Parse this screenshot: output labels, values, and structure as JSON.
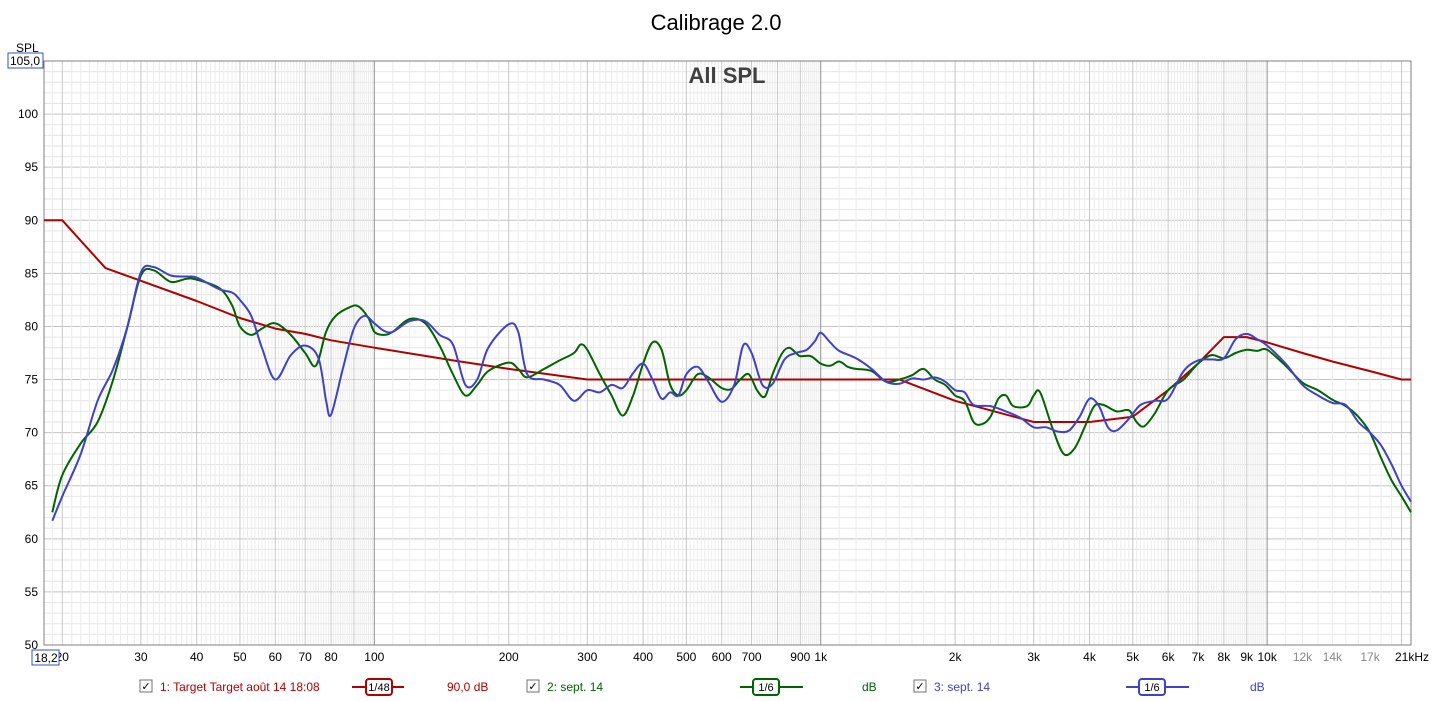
{
  "chart_data": {
    "type": "line",
    "title": "Calibrage 2.0",
    "subtitle": "All SPL",
    "ylabel": "SPL",
    "xunit": "kHz",
    "x_scale": "log",
    "xlim": [
      18.2,
      21000
    ],
    "ylim": [
      50,
      105
    ],
    "xlim_box_label": "18,2",
    "ylim_box_label": "105,0",
    "y_ticks": [
      50,
      55,
      60,
      65,
      70,
      75,
      80,
      85,
      90,
      95,
      100
    ],
    "x_ticks": [
      {
        "v": 20,
        "label": "20"
      },
      {
        "v": 30,
        "label": "30"
      },
      {
        "v": 40,
        "label": "40"
      },
      {
        "v": 50,
        "label": "50"
      },
      {
        "v": 60,
        "label": "60"
      },
      {
        "v": 70,
        "label": "70"
      },
      {
        "v": 80,
        "label": "80"
      },
      {
        "v": 100,
        "label": "100"
      },
      {
        "v": 200,
        "label": "200"
      },
      {
        "v": 300,
        "label": "300"
      },
      {
        "v": 400,
        "label": "400"
      },
      {
        "v": 500,
        "label": "500"
      },
      {
        "v": 600,
        "label": "600"
      },
      {
        "v": 700,
        "label": "700"
      },
      {
        "v": 900,
        "label": "900"
      },
      {
        "v": 1000,
        "label": "1k"
      },
      {
        "v": 2000,
        "label": "2k"
      },
      {
        "v": 3000,
        "label": "3k"
      },
      {
        "v": 4000,
        "label": "4k"
      },
      {
        "v": 5000,
        "label": "5k"
      },
      {
        "v": 6000,
        "label": "6k"
      },
      {
        "v": 7000,
        "label": "7k"
      },
      {
        "v": 8000,
        "label": "8k"
      },
      {
        "v": 9000,
        "label": "9k"
      },
      {
        "v": 10000,
        "label": "10k"
      },
      {
        "v": 12000,
        "label": "12k",
        "light": true
      },
      {
        "v": 14000,
        "label": "14k",
        "light": true
      },
      {
        "v": 17000,
        "label": "17k",
        "light": true
      },
      {
        "v": 21000,
        "label": "21kHz"
      }
    ],
    "grid": true,
    "series": [
      {
        "name": "1: Target Target août 14 18:08",
        "color": "#b00000",
        "points": [
          [
            18.2,
            90
          ],
          [
            20,
            90
          ],
          [
            25,
            85.5
          ],
          [
            30,
            84.3
          ],
          [
            40,
            82.4
          ],
          [
            50,
            80.8
          ],
          [
            60,
            79.8
          ],
          [
            70,
            79.3
          ],
          [
            80,
            78.7
          ],
          [
            100,
            78
          ],
          [
            150,
            76.8
          ],
          [
            200,
            76
          ],
          [
            300,
            75
          ],
          [
            500,
            75
          ],
          [
            700,
            75
          ],
          [
            1000,
            75
          ],
          [
            1500,
            75
          ],
          [
            2000,
            73
          ],
          [
            3000,
            71
          ],
          [
            4000,
            71
          ],
          [
            5000,
            71.5
          ],
          [
            6000,
            74
          ],
          [
            7000,
            76.5
          ],
          [
            8000,
            79
          ],
          [
            9000,
            79
          ],
          [
            10000,
            78.5
          ],
          [
            12000,
            77.5
          ],
          [
            14000,
            76.7
          ],
          [
            17000,
            75.8
          ],
          [
            20000,
            75
          ],
          [
            21000,
            75
          ]
        ]
      },
      {
        "name": "2: sept. 14",
        "color": "#006400",
        "points": [
          [
            19,
            62.5
          ],
          [
            20,
            66
          ],
          [
            22,
            69
          ],
          [
            24,
            71
          ],
          [
            26,
            75
          ],
          [
            28,
            80
          ],
          [
            30,
            84.8
          ],
          [
            32,
            85.3
          ],
          [
            35,
            84.2
          ],
          [
            38,
            84.5
          ],
          [
            40,
            84.4
          ],
          [
            45,
            83.6
          ],
          [
            48,
            82
          ],
          [
            50,
            80
          ],
          [
            53,
            79.2
          ],
          [
            56,
            79.8
          ],
          [
            60,
            80.3
          ],
          [
            65,
            79.2
          ],
          [
            70,
            77.5
          ],
          [
            74,
            76.3
          ],
          [
            78,
            79.5
          ],
          [
            82,
            81
          ],
          [
            88,
            81.8
          ],
          [
            92,
            81.9
          ],
          [
            97,
            80.8
          ],
          [
            100,
            79.5
          ],
          [
            105,
            79.2
          ],
          [
            110,
            79.5
          ],
          [
            120,
            80.7
          ],
          [
            130,
            80.3
          ],
          [
            140,
            78.2
          ],
          [
            150,
            75.5
          ],
          [
            160,
            73.5
          ],
          [
            170,
            74.5
          ],
          [
            180,
            75.8
          ],
          [
            200,
            76.6
          ],
          [
            210,
            76
          ],
          [
            220,
            75.2
          ],
          [
            240,
            76
          ],
          [
            260,
            76.8
          ],
          [
            280,
            77.5
          ],
          [
            290,
            78.3
          ],
          [
            300,
            77.8
          ],
          [
            320,
            75.5
          ],
          [
            340,
            73.5
          ],
          [
            360,
            71.6
          ],
          [
            380,
            73.5
          ],
          [
            400,
            76.5
          ],
          [
            420,
            78.5
          ],
          [
            440,
            77.8
          ],
          [
            460,
            74.5
          ],
          [
            480,
            73.5
          ],
          [
            500,
            74
          ],
          [
            530,
            75.5
          ],
          [
            560,
            75.2
          ],
          [
            600,
            74.2
          ],
          [
            630,
            74.1
          ],
          [
            660,
            75
          ],
          [
            690,
            75.5
          ],
          [
            720,
            74
          ],
          [
            750,
            73.4
          ],
          [
            780,
            75.5
          ],
          [
            820,
            77.5
          ],
          [
            850,
            78
          ],
          [
            880,
            77.5
          ],
          [
            900,
            77.2
          ],
          [
            950,
            77.2
          ],
          [
            1000,
            76.5
          ],
          [
            1050,
            76.3
          ],
          [
            1100,
            76.7
          ],
          [
            1150,
            76.2
          ],
          [
            1200,
            76
          ],
          [
            1300,
            75.8
          ],
          [
            1400,
            74.8
          ],
          [
            1500,
            75
          ],
          [
            1600,
            75.4
          ],
          [
            1700,
            76
          ],
          [
            1800,
            75
          ],
          [
            1900,
            74.5
          ],
          [
            2000,
            73.5
          ],
          [
            2100,
            73
          ],
          [
            2200,
            71
          ],
          [
            2300,
            70.8
          ],
          [
            2400,
            71.5
          ],
          [
            2500,
            73.2
          ],
          [
            2600,
            73.5
          ],
          [
            2700,
            72.5
          ],
          [
            2900,
            72.5
          ],
          [
            3000,
            73.5
          ],
          [
            3100,
            73.8
          ],
          [
            3300,
            70.5
          ],
          [
            3500,
            68
          ],
          [
            3700,
            68.5
          ],
          [
            3900,
            70.5
          ],
          [
            4100,
            72.5
          ],
          [
            4300,
            72.6
          ],
          [
            4600,
            72
          ],
          [
            4900,
            72.1
          ],
          [
            5100,
            71
          ],
          [
            5300,
            70.6
          ],
          [
            5600,
            71.8
          ],
          [
            6000,
            74
          ],
          [
            6500,
            75
          ],
          [
            7000,
            76.5
          ],
          [
            7500,
            77.3
          ],
          [
            8000,
            77
          ],
          [
            8500,
            77.5
          ],
          [
            9000,
            77.8
          ],
          [
            9500,
            77.7
          ],
          [
            10000,
            77.8
          ],
          [
            11000,
            76.3
          ],
          [
            12000,
            74.7
          ],
          [
            13000,
            74
          ],
          [
            14000,
            73.1
          ],
          [
            15000,
            72.5
          ],
          [
            16000,
            71.5
          ],
          [
            17000,
            70
          ],
          [
            18000,
            67.6
          ],
          [
            19000,
            65.5
          ],
          [
            20000,
            64
          ],
          [
            21000,
            62.5
          ]
        ]
      },
      {
        "name": "3: sept. 14",
        "color": "#4040c8",
        "points": [
          [
            19,
            61.7
          ],
          [
            20,
            64
          ],
          [
            22,
            68
          ],
          [
            24,
            73
          ],
          [
            26,
            76
          ],
          [
            28,
            80
          ],
          [
            30,
            85.1
          ],
          [
            32,
            85.6
          ],
          [
            35,
            84.8
          ],
          [
            38,
            84.7
          ],
          [
            40,
            84.6
          ],
          [
            45,
            83.5
          ],
          [
            48,
            83.2
          ],
          [
            50,
            82.5
          ],
          [
            53,
            81
          ],
          [
            56,
            78
          ],
          [
            60,
            75
          ],
          [
            65,
            77.3
          ],
          [
            70,
            78.2
          ],
          [
            75,
            77
          ],
          [
            78,
            73
          ],
          [
            80,
            71.7
          ],
          [
            85,
            76
          ],
          [
            90,
            79.8
          ],
          [
            95,
            81
          ],
          [
            100,
            80.3
          ],
          [
            105,
            79.6
          ],
          [
            110,
            79.5
          ],
          [
            120,
            80.5
          ],
          [
            130,
            80.5
          ],
          [
            140,
            79.2
          ],
          [
            150,
            78.3
          ],
          [
            160,
            74.5
          ],
          [
            170,
            75
          ],
          [
            180,
            78
          ],
          [
            200,
            80.2
          ],
          [
            210,
            79.5
          ],
          [
            220,
            75.5
          ],
          [
            240,
            75
          ],
          [
            260,
            74.5
          ],
          [
            280,
            73
          ],
          [
            300,
            74
          ],
          [
            320,
            73.8
          ],
          [
            340,
            74.5
          ],
          [
            360,
            74.2
          ],
          [
            380,
            75.6
          ],
          [
            400,
            76.5
          ],
          [
            420,
            75
          ],
          [
            440,
            73.2
          ],
          [
            460,
            73.8
          ],
          [
            480,
            73.5
          ],
          [
            500,
            75.5
          ],
          [
            530,
            76.2
          ],
          [
            560,
            74.8
          ],
          [
            600,
            72.9
          ],
          [
            640,
            74.5
          ],
          [
            670,
            78.2
          ],
          [
            700,
            77.5
          ],
          [
            740,
            74.5
          ],
          [
            780,
            74.6
          ],
          [
            830,
            76.9
          ],
          [
            880,
            77.5
          ],
          [
            930,
            77.8
          ],
          [
            970,
            78.6
          ],
          [
            1000,
            79.4
          ],
          [
            1050,
            78.5
          ],
          [
            1100,
            77.7
          ],
          [
            1200,
            77
          ],
          [
            1300,
            76
          ],
          [
            1400,
            74.8
          ],
          [
            1500,
            74.6
          ],
          [
            1600,
            75.1
          ],
          [
            1700,
            75
          ],
          [
            1800,
            75.2
          ],
          [
            1900,
            74.8
          ],
          [
            2000,
            74
          ],
          [
            2100,
            73.8
          ],
          [
            2200,
            72.6
          ],
          [
            2400,
            72.5
          ],
          [
            2600,
            72
          ],
          [
            2800,
            71.4
          ],
          [
            3000,
            70.5
          ],
          [
            3200,
            70.5
          ],
          [
            3400,
            70.1
          ],
          [
            3600,
            70.2
          ],
          [
            3800,
            71.5
          ],
          [
            4000,
            73.2
          ],
          [
            4200,
            72.5
          ],
          [
            4400,
            70.5
          ],
          [
            4600,
            70.2
          ],
          [
            4900,
            71.3
          ],
          [
            5200,
            72.6
          ],
          [
            5600,
            73
          ],
          [
            6000,
            73.2
          ],
          [
            6500,
            75.8
          ],
          [
            7000,
            76.8
          ],
          [
            7500,
            76.9
          ],
          [
            8000,
            77
          ],
          [
            8500,
            78.8
          ],
          [
            9000,
            79.3
          ],
          [
            9500,
            78.8
          ],
          [
            10000,
            78.2
          ],
          [
            11000,
            76.5
          ],
          [
            12000,
            74.5
          ],
          [
            13000,
            73.5
          ],
          [
            14000,
            72.8
          ],
          [
            15000,
            72.6
          ],
          [
            16000,
            71
          ],
          [
            17000,
            70
          ],
          [
            18000,
            68.8
          ],
          [
            19000,
            67
          ],
          [
            20000,
            65
          ],
          [
            21000,
            63.5
          ]
        ]
      }
    ],
    "legend": [
      {
        "label": "1: Target Target août 14 18:08",
        "smoothing": "1/48",
        "value": "90,0 dB",
        "color": "#b00000",
        "checked": true
      },
      {
        "label": "2: sept. 14",
        "smoothing": "1/6",
        "value": "dB",
        "color": "#006400",
        "checked": true
      },
      {
        "label": "3: sept. 14",
        "smoothing": "1/6",
        "value": "dB",
        "color": "#4040c8",
        "checked": true
      }
    ]
  }
}
